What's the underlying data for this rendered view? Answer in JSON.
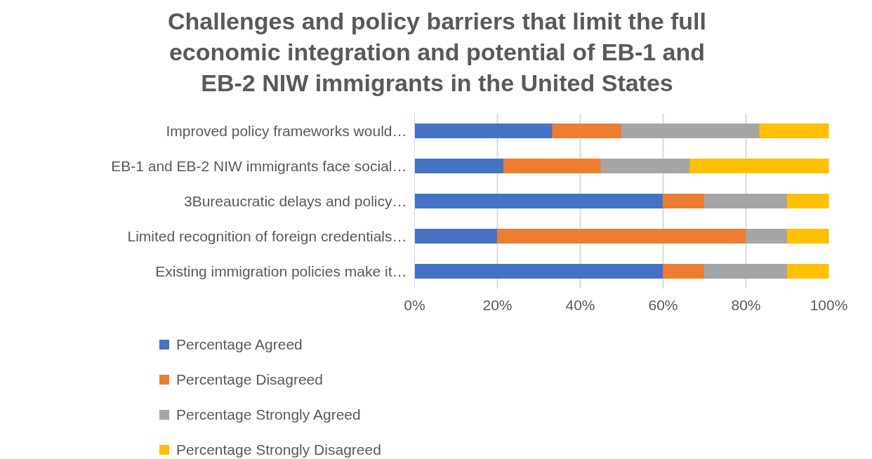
{
  "chart_data": {
    "type": "bar",
    "orientation": "horizontal",
    "stacked": true,
    "title": "Challenges and policy barriers that limit the full economic integration and potential of EB-1 and EB-2 NIW immigrants in the United States",
    "categories": [
      "Improved policy frameworks would…",
      "EB-1 and EB-2 NIW immigrants face social…",
      "3Bureaucratic delays and policy…",
      "Limited recognition of foreign credentials…",
      "Existing immigration policies make it…"
    ],
    "series": [
      {
        "name": "Percentage Agreed",
        "color": "#4472c4",
        "values": [
          33.3,
          21.5,
          60,
          20,
          60
        ]
      },
      {
        "name": "Percentage Disagreed",
        "color": "#ed7d31",
        "values": [
          16.7,
          23.5,
          10,
          60,
          10
        ]
      },
      {
        "name": "Percentage Strongly Agreed",
        "color": "#a5a5a5",
        "values": [
          33.3,
          21.5,
          20,
          10,
          20
        ]
      },
      {
        "name": "Percentage Strongly Disagreed",
        "color": "#ffc000",
        "values": [
          16.7,
          33.5,
          10,
          10,
          10
        ]
      }
    ],
    "xlim": [
      0,
      100
    ],
    "xticks": [
      {
        "value": 0,
        "label": "0%"
      },
      {
        "value": 20,
        "label": "20%"
      },
      {
        "value": 40,
        "label": "40%"
      },
      {
        "value": 60,
        "label": "60%"
      },
      {
        "value": 80,
        "label": "80%"
      },
      {
        "value": 100,
        "label": "100%"
      }
    ],
    "grid": "x",
    "legend": "bottom"
  }
}
